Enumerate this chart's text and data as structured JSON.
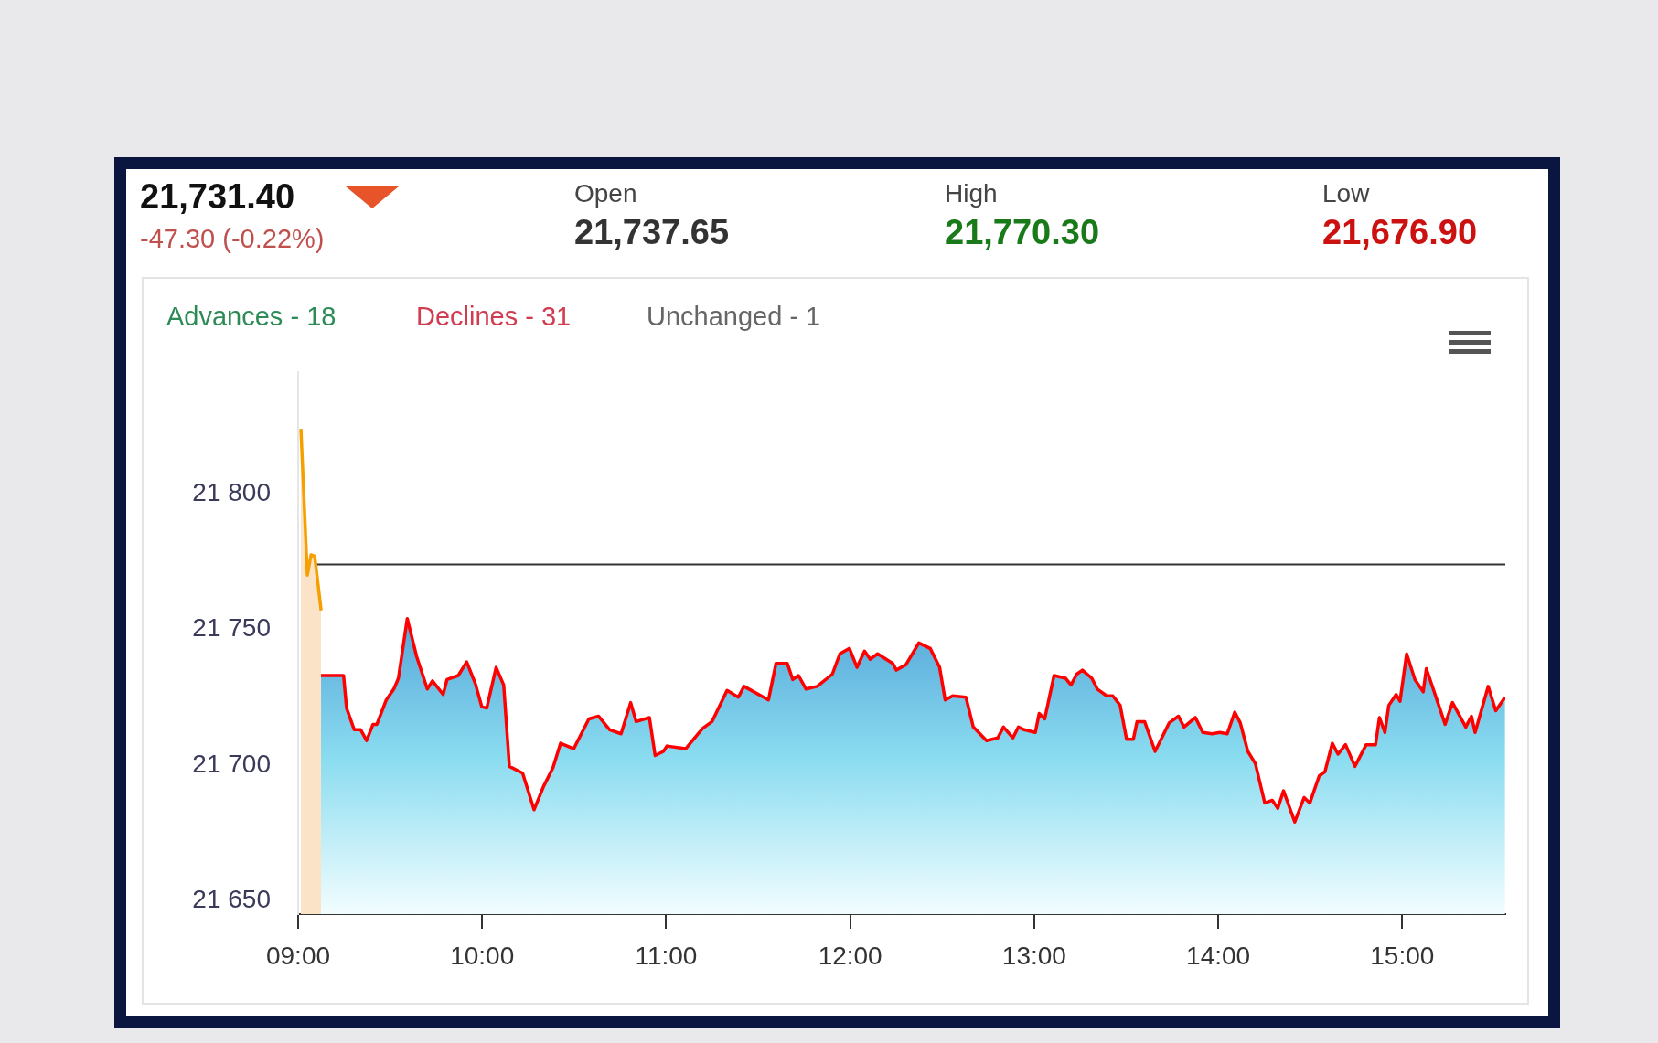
{
  "chart_data": {
    "type": "area",
    "title": "21,731.40",
    "subtitle": "-47.30 (-0.22%)",
    "annotations": [
      "Open",
      "21,737.65",
      "High",
      "21,770.30",
      "Low",
      "21,676.90",
      "Advances - 18",
      "Declines - 31",
      "Unchanged - 1"
    ],
    "series": [
      {
        "color": "#f5a000",
        "x": [
          9.015,
          9.05,
          9.07,
          9.09,
          9.125
        ],
        "values": [
          21824,
          21770,
          21777.5,
          21777,
          21757
        ]
      },
      {
        "color": "#ff0000",
        "x": [
          9.115,
          9.247,
          9.263,
          9.305,
          9.34,
          9.372,
          9.407,
          9.428,
          9.479,
          9.52,
          9.545,
          9.593,
          9.644,
          9.702,
          9.73,
          9.788,
          9.809,
          9.87,
          9.916,
          9.963,
          9.998,
          10.025,
          10.076,
          10.117,
          10.148,
          10.22,
          10.282,
          10.333,
          10.385,
          10.426,
          10.498,
          10.58,
          10.632,
          10.693,
          10.755,
          10.807,
          10.837,
          10.909,
          10.94,
          10.985,
          11.004,
          11.106,
          11.198,
          11.249,
          11.331,
          11.392,
          11.423,
          11.556,
          11.597,
          11.658,
          11.688,
          11.719,
          11.76,
          11.821,
          11.903,
          11.944,
          11.996,
          12.037,
          12.078,
          12.109,
          12.149,
          12.231,
          12.251,
          12.303,
          12.373,
          12.435,
          12.486,
          12.516,
          12.557,
          12.629,
          12.669,
          12.741,
          12.802,
          12.833,
          12.884,
          12.914,
          12.945,
          13.006,
          13.027,
          13.057,
          13.108,
          13.17,
          13.2,
          13.231,
          13.262,
          13.313,
          13.343,
          13.394,
          13.427,
          13.467,
          13.502,
          13.539,
          13.559,
          13.6,
          13.657,
          13.733,
          13.784,
          13.814,
          13.876,
          13.916,
          13.967,
          14.008,
          14.049,
          14.09,
          14.12,
          14.161,
          14.202,
          14.253,
          14.294,
          14.324,
          14.355,
          14.416,
          14.467,
          14.498,
          14.549,
          14.58,
          14.62,
          14.651,
          14.692,
          14.743,
          14.804,
          14.855,
          14.876,
          14.906,
          14.927,
          14.967,
          14.988,
          15.024,
          15.069,
          15.114,
          15.131,
          15.171,
          15.233,
          15.273,
          15.345,
          15.376,
          15.396,
          15.467,
          15.508,
          15.559
        ],
        "values": [
          21733,
          21733,
          21721,
          21713,
          21713,
          21709,
          21715,
          21715,
          21724,
          21728,
          21732,
          21754,
          21740,
          21728,
          21731,
          21726,
          21731.5,
          21733,
          21738,
          21730,
          21721.5,
          21721,
          21736,
          21729.5,
          21699.5,
          21697,
          21683.5,
          21692,
          21699,
          21708,
          21706,
          21717,
          21718,
          21713,
          21711.5,
          21723,
          21716,
          21717.5,
          21703.5,
          21705,
          21707,
          21706,
          21713.5,
          21716,
          21727.5,
          21725,
          21729,
          21724,
          21737.5,
          21737.5,
          21731.5,
          21733,
          21728,
          21729,
          21733.5,
          21741,
          21743,
          21736,
          21742,
          21739,
          21741,
          21737.5,
          21735,
          21737,
          21745,
          21743,
          21736,
          21724,
          21725.5,
          21725,
          21714,
          21709,
          21710,
          21714,
          21710,
          21714,
          21713,
          21712,
          21719,
          21717,
          21733,
          21732,
          21729.5,
          21733.5,
          21735,
          21732,
          21728,
          21725.5,
          21725.5,
          21722,
          21709.5,
          21709.5,
          21716,
          21716,
          21705,
          21715.5,
          21718,
          21714,
          21717.5,
          21712,
          21711.5,
          21712,
          21711.5,
          21719.5,
          21715.5,
          21705,
          21700.5,
          21686,
          21687,
          21684,
          21690.5,
          21679,
          21688,
          21686,
          21696,
          21697.5,
          21708,
          21704,
          21707.5,
          21699.5,
          21707.5,
          21707.5,
          21717.5,
          21712,
          21722,
          21726,
          21723.5,
          21741,
          21731.5,
          21727,
          21735.5,
          21727.5,
          21715,
          21723,
          21714,
          21718,
          21712,
          21729,
          21720,
          21725
        ]
      }
    ],
    "xlim": [
      9,
      15.56
    ],
    "ylim": [
      21645,
      21845
    ],
    "xticks": [
      {
        "value": 9,
        "label": "09:00"
      },
      {
        "value": 10,
        "label": "10:00"
      },
      {
        "value": 11,
        "label": "11:00"
      },
      {
        "value": 12,
        "label": "12:00"
      },
      {
        "value": 13,
        "label": "13:00"
      },
      {
        "value": 14,
        "label": "14:00"
      },
      {
        "value": 15,
        "label": "15:00"
      }
    ],
    "yticks": [
      {
        "value": 21650,
        "label": "21 650"
      },
      {
        "value": 21700,
        "label": "21 700"
      },
      {
        "value": 21750,
        "label": "21 750"
      },
      {
        "value": 21800,
        "label": "21 800"
      }
    ],
    "ref_lines": [
      {
        "axis": "y",
        "value": 21774,
        "color": "#333333"
      }
    ],
    "grid": false,
    "legend": false,
    "marker": "none",
    "line_style": "solid"
  }
}
